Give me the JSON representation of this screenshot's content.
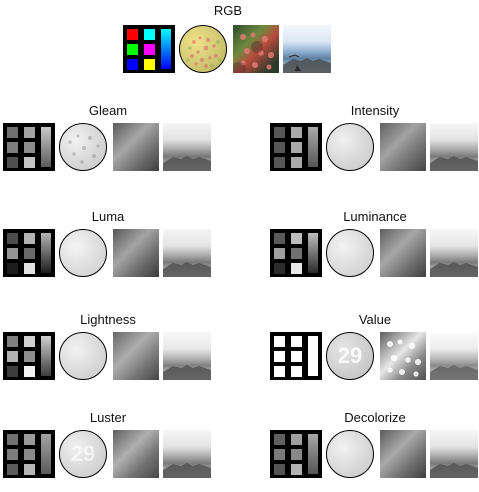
{
  "top": {
    "title": "RGB"
  },
  "panels": [
    {
      "title": "Gleam"
    },
    {
      "title": "Intensity"
    },
    {
      "title": "Luma"
    },
    {
      "title": "Luminance"
    },
    {
      "title": "Lightness"
    },
    {
      "title": "Value"
    },
    {
      "title": "Luster"
    },
    {
      "title": "Decolorize"
    }
  ],
  "numbers": {
    "value_disc": "29",
    "luster_disc": "29"
  },
  "colors": {
    "rgb_cells": [
      "#ff0000",
      "#00ffff",
      "#00ff00",
      "#ff00ff",
      "#0000ff",
      "#ffff00"
    ],
    "rgb_bar": [
      "#00ffff",
      "#0000ff"
    ]
  }
}
